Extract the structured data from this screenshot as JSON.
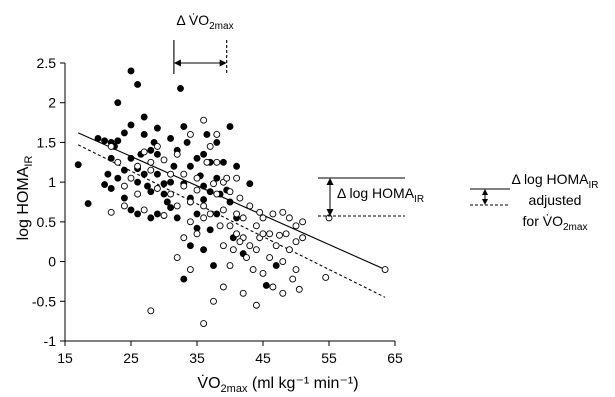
{
  "chart_data": {
    "type": "scatter",
    "title": "",
    "xlabel": {
      "main": "V̇O",
      "sub": "2max",
      "rest": " (ml kg⁻¹ min⁻¹)"
    },
    "ylabel": {
      "main": "log HOMA",
      "sub": "IR"
    },
    "xlim": [
      15,
      65
    ],
    "ylim": [
      -1,
      2.5
    ],
    "x_ticks": [
      15,
      25,
      35,
      45,
      55,
      65
    ],
    "y_ticks": [
      -1,
      -0.5,
      0,
      0.5,
      1,
      1.5,
      2,
      2.5
    ],
    "grid": false,
    "legend": "none",
    "series": [
      {
        "marker": "filled-circle",
        "points": [
          [
            17,
            1.22
          ],
          [
            18.5,
            0.73
          ],
          [
            20,
            1.55
          ],
          [
            21,
            1.52
          ],
          [
            22,
            1.5
          ],
          [
            22.5,
            1.45
          ],
          [
            22,
            1.3
          ],
          [
            21.5,
            1.1
          ],
          [
            21,
            0.97
          ],
          [
            22,
            0.92
          ],
          [
            23,
            1.05
          ],
          [
            24,
            0.8
          ],
          [
            25,
            0.65
          ],
          [
            23,
            2.0
          ],
          [
            25,
            2.4
          ],
          [
            26,
            2.23
          ],
          [
            24,
            1.62
          ],
          [
            25,
            1.3
          ],
          [
            26,
            1.0
          ],
          [
            26,
            1.17
          ],
          [
            27,
            1.1
          ],
          [
            27.5,
            0.95
          ],
          [
            28,
            0.88
          ],
          [
            28.5,
            1.5
          ],
          [
            27,
            1.6
          ],
          [
            28,
            1.4
          ],
          [
            29,
            1.35
          ],
          [
            29,
            1.1
          ],
          [
            30,
            0.98
          ],
          [
            30.5,
            0.75
          ],
          [
            31,
            1.0
          ],
          [
            31.5,
            1.2
          ],
          [
            32,
            1.4
          ],
          [
            32.5,
            2.18
          ],
          [
            33,
            1.7
          ],
          [
            33,
            0.98
          ],
          [
            34,
            0.8
          ],
          [
            35,
            0.6
          ],
          [
            35,
            1.3
          ],
          [
            36,
            0.95
          ],
          [
            36.5,
            1.6
          ],
          [
            37,
            1.25
          ],
          [
            37,
            0.4
          ],
          [
            38,
            0.6
          ],
          [
            38,
            1.05
          ],
          [
            39,
            1.25
          ],
          [
            39.5,
            0.9
          ],
          [
            40,
            1.7
          ],
          [
            40,
            0.75
          ],
          [
            35,
            0.42
          ],
          [
            34,
            0.2
          ],
          [
            33,
            -0.22
          ],
          [
            36,
            0.15
          ],
          [
            37.5,
            -0.05
          ],
          [
            28,
            0.55
          ],
          [
            29,
            0.6
          ],
          [
            30,
            0.85
          ],
          [
            32,
            0.55
          ],
          [
            31,
            0.68
          ],
          [
            38,
            1.5
          ],
          [
            35.5,
            1.08
          ],
          [
            36,
            0.78
          ],
          [
            37,
            0.88
          ],
          [
            42,
            0.1
          ],
          [
            47,
            -0.05
          ],
          [
            45.5,
            -0.3
          ],
          [
            43,
            0.98
          ],
          [
            41,
            1.2
          ],
          [
            41,
            0.55
          ],
          [
            26,
            0.6
          ],
          [
            24,
            1.15
          ],
          [
            26.5,
            1.35
          ],
          [
            23,
            1.52
          ],
          [
            25,
            1.72
          ],
          [
            27,
            1.82
          ],
          [
            29,
            1.68
          ],
          [
            31,
            1.55
          ],
          [
            33.5,
            1.5
          ],
          [
            34,
            1.2
          ],
          [
            36,
            1.35
          ],
          [
            38.5,
            0.85
          ],
          [
            40.5,
            0.3
          ]
        ]
      },
      {
        "marker": "open-circle",
        "points": [
          [
            22,
            0.62
          ],
          [
            24,
            0.7
          ],
          [
            26,
            0.85
          ],
          [
            27,
            0.65
          ],
          [
            28,
            1.15
          ],
          [
            29,
            0.92
          ],
          [
            30,
            0.58
          ],
          [
            31,
            0.85
          ],
          [
            32,
            0.7
          ],
          [
            33,
            0.95
          ],
          [
            34,
            0.75
          ],
          [
            35,
            1.05
          ],
          [
            35,
            0.9
          ],
          [
            36,
            0.7
          ],
          [
            36,
            0.55
          ],
          [
            37,
            0.6
          ],
          [
            37.5,
            0.98
          ],
          [
            38,
            0.85
          ],
          [
            38.5,
            0.45
          ],
          [
            39,
            0.65
          ],
          [
            39,
            0.2
          ],
          [
            40,
            0.45
          ],
          [
            40,
            -0.05
          ],
          [
            40.5,
            0.15
          ],
          [
            41,
            0.6
          ],
          [
            41,
            0.35
          ],
          [
            41.5,
            0.8
          ],
          [
            42,
            0.55
          ],
          [
            42,
            0.3
          ],
          [
            42.5,
            0.05
          ],
          [
            43,
            0.7
          ],
          [
            43,
            0.2
          ],
          [
            43.5,
            -0.1
          ],
          [
            44,
            0.45
          ],
          [
            44,
            0.15
          ],
          [
            44.5,
            0.3
          ],
          [
            45,
            0.55
          ],
          [
            45,
            -0.15
          ],
          [
            46,
            0.35
          ],
          [
            46,
            0.05
          ],
          [
            46.5,
            -0.32
          ],
          [
            47,
            0.2
          ],
          [
            47.5,
            0.33
          ],
          [
            48,
            0.0
          ],
          [
            48,
            -0.4
          ],
          [
            48.5,
            0.35
          ],
          [
            49,
            0.15
          ],
          [
            49.5,
            -0.22
          ],
          [
            50,
            0.45
          ],
          [
            50,
            0.25
          ],
          [
            50,
            -0.1
          ],
          [
            50.5,
            -0.35
          ],
          [
            51,
            0.3
          ],
          [
            55,
            0.55
          ],
          [
            54.5,
            -0.2
          ],
          [
            63.5,
            -0.1
          ],
          [
            28,
            -0.62
          ],
          [
            36,
            -0.78
          ],
          [
            37.5,
            -0.5
          ],
          [
            34,
            -0.1
          ],
          [
            39,
            -0.32
          ],
          [
            42,
            -0.4
          ],
          [
            44,
            -0.55
          ],
          [
            32,
            0.05
          ],
          [
            33,
            0.3
          ],
          [
            34,
            0.5
          ],
          [
            35,
            0.35
          ],
          [
            36.5,
            1.25
          ],
          [
            37,
            1.45
          ],
          [
            38,
            1.6
          ],
          [
            36,
            1.78
          ],
          [
            34,
            1.6
          ],
          [
            32,
            1.35
          ],
          [
            31,
            1.1
          ],
          [
            30,
            1.28
          ],
          [
            29,
            1.45
          ],
          [
            28,
            1.25
          ],
          [
            27,
            1.38
          ],
          [
            26,
            1.2
          ],
          [
            25,
            1.05
          ],
          [
            24,
            0.95
          ],
          [
            22,
            1.45
          ],
          [
            23,
            1.25
          ],
          [
            38,
            1.25
          ],
          [
            39,
            1.0
          ],
          [
            40,
            0.88
          ],
          [
            41,
            1.05
          ],
          [
            41.5,
            0.25
          ],
          [
            44.5,
            0.62
          ],
          [
            46.5,
            0.6
          ],
          [
            48,
            0.62
          ],
          [
            51,
            0.5
          ],
          [
            45,
            0.35
          ],
          [
            49,
            0.55
          ],
          [
            39.5,
            1.05
          ],
          [
            33,
            1.1
          ]
        ]
      }
    ],
    "lines": [
      {
        "style": "solid",
        "x": [
          17,
          63.5
        ],
        "y": [
          1.62,
          -0.1
        ]
      },
      {
        "style": "dashed",
        "x": [
          17,
          63.5
        ],
        "y": [
          1.47,
          -0.45
        ]
      }
    ],
    "annotations": {
      "delta_vo2": {
        "prefix": "Δ ",
        "main": "V̇O",
        "sub": "2max",
        "x_solid": 31.5,
        "x_dashed": 39.5
      },
      "delta_homa": {
        "prefix": "Δ log HOMA",
        "sub": "IR"
      },
      "delta_homa_adjusted": {
        "line1": "Δ log HOMA",
        "line1_sub": "IR",
        "line2": "adjusted",
        "line3": "for V̇O",
        "line3_sub": "2max"
      }
    }
  }
}
